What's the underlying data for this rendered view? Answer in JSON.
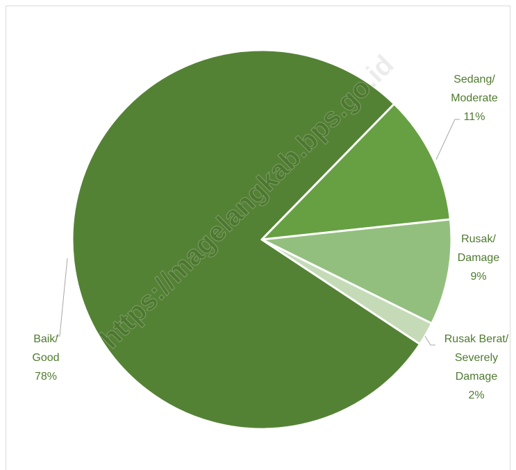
{
  "chart_data": {
    "type": "pie",
    "slices": [
      {
        "label_lines": [
          "Baik/",
          "Good",
          "78%"
        ],
        "value": 78,
        "color": "#548235"
      },
      {
        "label_lines": [
          "Sedang/",
          "Moderate",
          "11%"
        ],
        "value": 11,
        "color": "#67a043"
      },
      {
        "label_lines": [
          "Rusak/",
          "Damage",
          "9%"
        ],
        "value": 9,
        "color": "#93bf7e"
      },
      {
        "label_lines": [
          "Rusak Berat/",
          "Severely",
          "Damage",
          "2%"
        ],
        "value": 2,
        "color": "#c5dbb8"
      }
    ],
    "title": "",
    "legend": "none"
  },
  "watermark": {
    "text": "https://magelangkab.bps.go.id"
  }
}
